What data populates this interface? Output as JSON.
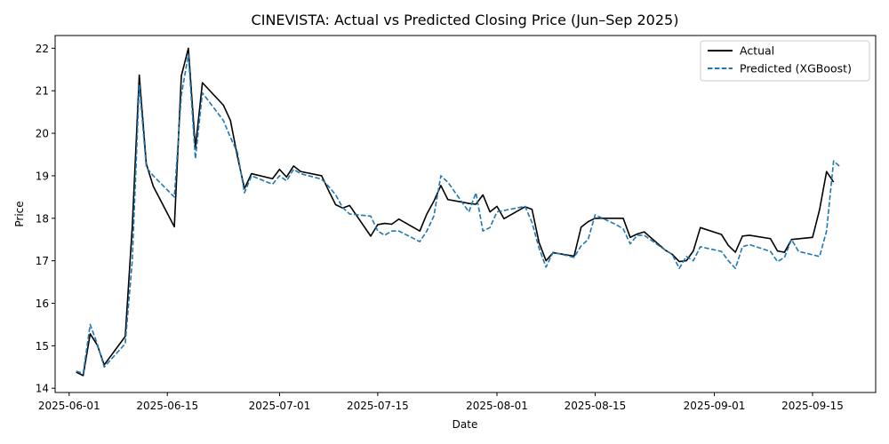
{
  "chart_data": {
    "type": "line",
    "title": "CINEVISTA: Actual vs Predicted Closing Price (Jun–Sep 2025)",
    "xlabel": "Date",
    "ylabel": "Price",
    "xlim": [
      "2025-05-30",
      "2025-09-24"
    ],
    "ylim": [
      13.9,
      22.3
    ],
    "yticks": [
      14,
      15,
      16,
      17,
      18,
      19,
      20,
      21,
      22
    ],
    "xticks": [
      "2025-06-01",
      "2025-06-15",
      "2025-07-01",
      "2025-07-15",
      "2025-08-01",
      "2025-08-15",
      "2025-09-01",
      "2025-09-15"
    ],
    "grid": false,
    "legend_position": "top-right",
    "series": [
      {
        "name": "Actual",
        "color": "#000000",
        "style": "solid",
        "points": [
          [
            "2025-06-02",
            14.38
          ],
          [
            "2025-06-03",
            14.3
          ],
          [
            "2025-06-04",
            15.28
          ],
          [
            "2025-06-05",
            15.02
          ],
          [
            "2025-06-06",
            14.55
          ],
          [
            "2025-06-09",
            15.22
          ],
          [
            "2025-06-10",
            17.8
          ],
          [
            "2025-06-11",
            21.37
          ],
          [
            "2025-06-12",
            19.28
          ],
          [
            "2025-06-13",
            18.75
          ],
          [
            "2025-06-16",
            17.8
          ],
          [
            "2025-06-17",
            21.35
          ],
          [
            "2025-06-18",
            22.0
          ],
          [
            "2025-06-19",
            19.65
          ],
          [
            "2025-06-20",
            21.19
          ],
          [
            "2025-06-23",
            20.66
          ],
          [
            "2025-06-24",
            20.3
          ],
          [
            "2025-06-25",
            19.45
          ],
          [
            "2025-06-26",
            18.7
          ],
          [
            "2025-06-27",
            19.05
          ],
          [
            "2025-06-30",
            18.93
          ],
          [
            "2025-07-01",
            19.15
          ],
          [
            "2025-07-02",
            18.97
          ],
          [
            "2025-07-03",
            19.23
          ],
          [
            "2025-07-04",
            19.1
          ],
          [
            "2025-07-07",
            19.0
          ],
          [
            "2025-07-08",
            18.65
          ],
          [
            "2025-07-09",
            18.32
          ],
          [
            "2025-07-10",
            18.24
          ],
          [
            "2025-07-11",
            18.3
          ],
          [
            "2025-07-14",
            17.58
          ],
          [
            "2025-07-15",
            17.85
          ],
          [
            "2025-07-16",
            17.88
          ],
          [
            "2025-07-17",
            17.86
          ],
          [
            "2025-07-18",
            17.98
          ],
          [
            "2025-07-21",
            17.7
          ],
          [
            "2025-07-22",
            18.1
          ],
          [
            "2025-07-23",
            18.4
          ],
          [
            "2025-07-24",
            18.77
          ],
          [
            "2025-07-25",
            18.44
          ],
          [
            "2025-07-28",
            18.35
          ],
          [
            "2025-07-29",
            18.33
          ],
          [
            "2025-07-30",
            18.55
          ],
          [
            "2025-07-31",
            18.15
          ],
          [
            "2025-08-01",
            18.28
          ],
          [
            "2025-08-02",
            17.99
          ],
          [
            "2025-08-05",
            18.27
          ],
          [
            "2025-08-06",
            18.21
          ],
          [
            "2025-08-07",
            17.43
          ],
          [
            "2025-08-08",
            17.0
          ],
          [
            "2025-08-09",
            17.19
          ],
          [
            "2025-08-12",
            17.11
          ],
          [
            "2025-08-13",
            17.79
          ],
          [
            "2025-08-14",
            17.92
          ],
          [
            "2025-08-15",
            18.0
          ],
          [
            "2025-08-18",
            18.0
          ],
          [
            "2025-08-19",
            18.0
          ],
          [
            "2025-08-20",
            17.55
          ],
          [
            "2025-08-21",
            17.63
          ],
          [
            "2025-08-22",
            17.68
          ],
          [
            "2025-08-25",
            17.25
          ],
          [
            "2025-08-26",
            17.15
          ],
          [
            "2025-08-27",
            16.98
          ],
          [
            "2025-08-28",
            17.0
          ],
          [
            "2025-08-29",
            17.23
          ],
          [
            "2025-08-30",
            17.78
          ],
          [
            "2025-09-02",
            17.62
          ],
          [
            "2025-09-03",
            17.36
          ],
          [
            "2025-09-04",
            17.2
          ],
          [
            "2025-09-05",
            17.58
          ],
          [
            "2025-09-06",
            17.6
          ],
          [
            "2025-09-09",
            17.52
          ],
          [
            "2025-09-10",
            17.23
          ],
          [
            "2025-09-11",
            17.2
          ],
          [
            "2025-09-12",
            17.5
          ],
          [
            "2025-09-15",
            17.55
          ],
          [
            "2025-09-16",
            18.2
          ],
          [
            "2025-09-17",
            19.1
          ],
          [
            "2025-09-18",
            18.85
          ]
        ]
      },
      {
        "name": "Predicted (XGBoost)",
        "color": "#1f77b4",
        "style": "dashed",
        "points": [
          [
            "2025-06-02",
            14.4
          ],
          [
            "2025-06-03",
            14.35
          ],
          [
            "2025-06-04",
            15.5
          ],
          [
            "2025-06-05",
            15.05
          ],
          [
            "2025-06-06",
            14.5
          ],
          [
            "2025-06-09",
            15.05
          ],
          [
            "2025-06-10",
            17.0
          ],
          [
            "2025-06-11",
            21.15
          ],
          [
            "2025-06-12",
            19.2
          ],
          [
            "2025-06-13",
            19.0
          ],
          [
            "2025-06-16",
            18.5
          ],
          [
            "2025-06-17",
            20.9
          ],
          [
            "2025-06-18",
            21.85
          ],
          [
            "2025-06-19",
            19.4
          ],
          [
            "2025-06-20",
            20.95
          ],
          [
            "2025-06-23",
            20.3
          ],
          [
            "2025-06-24",
            19.9
          ],
          [
            "2025-06-25",
            19.55
          ],
          [
            "2025-06-26",
            18.6
          ],
          [
            "2025-06-27",
            19.0
          ],
          [
            "2025-06-30",
            18.8
          ],
          [
            "2025-07-01",
            19.0
          ],
          [
            "2025-07-02",
            18.88
          ],
          [
            "2025-07-03",
            19.15
          ],
          [
            "2025-07-04",
            19.05
          ],
          [
            "2025-07-07",
            18.92
          ],
          [
            "2025-07-08",
            18.75
          ],
          [
            "2025-07-09",
            18.55
          ],
          [
            "2025-07-10",
            18.25
          ],
          [
            "2025-07-11",
            18.1
          ],
          [
            "2025-07-14",
            18.05
          ],
          [
            "2025-07-15",
            17.7
          ],
          [
            "2025-07-16",
            17.6
          ],
          [
            "2025-07-17",
            17.7
          ],
          [
            "2025-07-18",
            17.7
          ],
          [
            "2025-07-21",
            17.45
          ],
          [
            "2025-07-22",
            17.7
          ],
          [
            "2025-07-23",
            18.05
          ],
          [
            "2025-07-24",
            19.0
          ],
          [
            "2025-07-25",
            18.85
          ],
          [
            "2025-07-28",
            18.15
          ],
          [
            "2025-07-29",
            18.6
          ],
          [
            "2025-07-30",
            17.7
          ],
          [
            "2025-07-31",
            17.78
          ],
          [
            "2025-08-01",
            18.15
          ],
          [
            "2025-08-05",
            18.28
          ],
          [
            "2025-08-06",
            17.9
          ],
          [
            "2025-08-07",
            17.3
          ],
          [
            "2025-08-08",
            16.85
          ],
          [
            "2025-08-09",
            17.2
          ],
          [
            "2025-08-12",
            17.08
          ],
          [
            "2025-08-13",
            17.35
          ],
          [
            "2025-08-14",
            17.5
          ],
          [
            "2025-08-15",
            18.08
          ],
          [
            "2025-08-18",
            17.85
          ],
          [
            "2025-08-19",
            17.75
          ],
          [
            "2025-08-20",
            17.4
          ],
          [
            "2025-08-21",
            17.6
          ],
          [
            "2025-08-22",
            17.6
          ],
          [
            "2025-08-25",
            17.25
          ],
          [
            "2025-08-26",
            17.15
          ],
          [
            "2025-08-27",
            16.82
          ],
          [
            "2025-08-28",
            17.1
          ],
          [
            "2025-08-29",
            17.0
          ],
          [
            "2025-08-30",
            17.33
          ],
          [
            "2025-09-02",
            17.22
          ],
          [
            "2025-09-03",
            17.0
          ],
          [
            "2025-09-04",
            16.82
          ],
          [
            "2025-09-05",
            17.33
          ],
          [
            "2025-09-06",
            17.38
          ],
          [
            "2025-09-09",
            17.22
          ],
          [
            "2025-09-10",
            16.98
          ],
          [
            "2025-09-11",
            17.08
          ],
          [
            "2025-09-12",
            17.5
          ],
          [
            "2025-09-13",
            17.22
          ],
          [
            "2025-09-16",
            17.1
          ],
          [
            "2025-09-17",
            17.7
          ],
          [
            "2025-09-18",
            19.35
          ],
          [
            "2025-09-19",
            19.2
          ]
        ]
      }
    ]
  }
}
